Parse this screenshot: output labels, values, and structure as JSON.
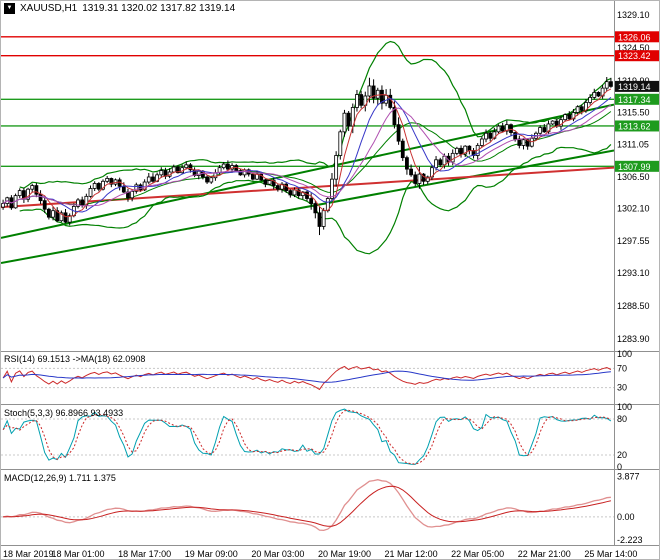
{
  "title": {
    "symbol": "XAUUSD,H1",
    "ohlc": "1319.31 1320.02 1317.82 1319.14"
  },
  "price_axis": {
    "ticks": [
      {
        "t": "1329.10",
        "v": 1329.1
      },
      {
        "t": "1324.50",
        "v": 1324.5
      },
      {
        "t": "1319.90",
        "v": 1319.9
      },
      {
        "t": "1315.50",
        "v": 1315.5
      },
      {
        "t": "1311.05",
        "v": 1311.05
      },
      {
        "t": "1306.50",
        "v": 1306.5
      },
      {
        "t": "1302.10",
        "v": 1302.1
      },
      {
        "t": "1297.55",
        "v": 1297.55
      },
      {
        "t": "1293.10",
        "v": 1293.1
      },
      {
        "t": "1288.50",
        "v": 1288.5
      },
      {
        "t": "1283.90",
        "v": 1283.9
      }
    ],
    "badges": [
      {
        "t": "1326.06",
        "v": 1326.06,
        "bg": "#e00000"
      },
      {
        "t": "1323.42",
        "v": 1323.42,
        "bg": "#e00000"
      },
      {
        "t": "1319.14",
        "v": 1319.14,
        "bg": "#111111"
      },
      {
        "t": "1317.34",
        "v": 1317.34,
        "bg": "#1e9b1e"
      },
      {
        "t": "1313.62",
        "v": 1313.62,
        "bg": "#1e9b1e"
      },
      {
        "t": "1307.99",
        "v": 1307.99,
        "bg": "#1e9b1e"
      }
    ]
  },
  "time_axis": {
    "labels": [
      {
        "t": "18 Mar 2019",
        "i": 2
      },
      {
        "t": "18 Mar 01:00",
        "i": 18
      },
      {
        "t": "18 Mar 17:00",
        "i": 34
      },
      {
        "t": "19 Mar 09:00",
        "i": 50
      },
      {
        "t": "20 Mar 03:00",
        "i": 66
      },
      {
        "t": "20 Mar 19:00",
        "i": 82
      },
      {
        "t": "21 Mar 12:00",
        "i": 98
      },
      {
        "t": "22 Mar 05:00",
        "i": 114
      },
      {
        "t": "22 Mar 21:00",
        "i": 130
      },
      {
        "t": "25 Mar 14:00",
        "i": 146
      }
    ]
  },
  "panels": {
    "rsi": {
      "label": "RSI(14) 69.1513 ->MA(18) 62.0908",
      "axis": [
        {
          "t": "100",
          "v": 100
        },
        {
          "t": "70",
          "v": 70
        },
        {
          "t": "30",
          "v": 30
        }
      ],
      "levels": [
        70,
        30
      ]
    },
    "stoch": {
      "label": "Stoch(5,3,3) 96.8966 93.4933",
      "axis": [
        {
          "t": "100",
          "v": 100
        },
        {
          "t": "80",
          "v": 80
        },
        {
          "t": "20",
          "v": 20
        },
        {
          "t": "0",
          "v": 0
        }
      ],
      "levels": [
        80,
        20
      ]
    },
    "macd": {
      "label": "MACD(12,26,9) 1.711 1.375",
      "axis": [
        {
          "t": "3.877",
          "v": 3.877
        },
        {
          "t": "0.00",
          "v": 0
        },
        {
          "t": "-2.223",
          "v": -2.223
        }
      ],
      "levels": [
        0
      ]
    }
  },
  "chart_data": {
    "type": "candlestick",
    "symbol": "XAUUSD",
    "timeframe": "H1",
    "ohlc_last": {
      "open": 1319.31,
      "high": 1320.02,
      "low": 1317.82,
      "close": 1319.14
    },
    "ylim": [
      1283.9,
      1329.1
    ],
    "closes": [
      1302.8,
      1303.6,
      1302.2,
      1303.9,
      1304.6,
      1303.4,
      1304.8,
      1305.3,
      1304.1,
      1303.2,
      1302.0,
      1300.9,
      1301.8,
      1300.4,
      1301.5,
      1300.2,
      1301.1,
      1302.4,
      1303.3,
      1302.6,
      1303.8,
      1304.9,
      1305.6,
      1304.8,
      1305.9,
      1306.3,
      1305.5,
      1306.1,
      1305.2,
      1304.4,
      1303.6,
      1304.5,
      1305.4,
      1304.7,
      1305.8,
      1306.5,
      1305.9,
      1306.8,
      1307.4,
      1306.6,
      1307.2,
      1307.9,
      1307.1,
      1307.8,
      1308.2,
      1307.5,
      1306.7,
      1307.3,
      1306.5,
      1305.8,
      1306.4,
      1307.1,
      1307.8,
      1308.3,
      1307.6,
      1308.1,
      1307.4,
      1306.8,
      1307.5,
      1306.9,
      1306.2,
      1306.9,
      1306.1,
      1305.5,
      1306.0,
      1305.3,
      1304.8,
      1305.5,
      1304.6,
      1304.0,
      1304.7,
      1303.9,
      1304.4,
      1303.5,
      1302.8,
      1301.5,
      1299.6,
      1301.8,
      1303.5,
      1306.2,
      1309.5,
      1312.8,
      1315.4,
      1313.6,
      1316.2,
      1318.0,
      1316.5,
      1317.8,
      1319.2,
      1317.5,
      1318.6,
      1316.8,
      1317.9,
      1316.2,
      1313.8,
      1311.5,
      1309.2,
      1307.6,
      1306.8,
      1305.6,
      1306.9,
      1305.9,
      1306.5,
      1307.8,
      1308.9,
      1308.2,
      1309.4,
      1308.6,
      1309.8,
      1310.5,
      1309.7,
      1310.8,
      1310.2,
      1309.5,
      1310.9,
      1311.8,
      1312.6,
      1311.9,
      1312.8,
      1313.6,
      1312.9,
      1313.8,
      1312.7,
      1311.8,
      1310.9,
      1311.7,
      1310.8,
      1311.9,
      1312.6,
      1313.4,
      1312.8,
      1313.9,
      1314.3,
      1313.6,
      1314.5,
      1315.2,
      1314.6,
      1315.5,
      1316.3,
      1315.8,
      1316.9,
      1317.6,
      1318.3,
      1317.8,
      1318.9,
      1319.8,
      1319.14
    ],
    "wick_overrides": [
      {
        "i": 76,
        "low": 1298.4
      },
      {
        "i": 88,
        "high": 1320.35
      },
      {
        "i": 145,
        "high": 1320.45
      }
    ],
    "hlines": [
      {
        "price": 1326.06,
        "color": "#e00000"
      },
      {
        "price": 1323.42,
        "color": "#e00000"
      },
      {
        "price": 1317.34,
        "color": "#1e9b1e"
      },
      {
        "price": 1313.62,
        "color": "#1e9b1e"
      },
      {
        "price": 1307.99,
        "color": "#1e9b1e"
      }
    ],
    "trendlines": [
      {
        "p_left": 1294.5,
        "p_right": 1310.2,
        "color": "#008000",
        "width": 2
      },
      {
        "p_left": 1298.0,
        "p_right": 1316.6,
        "color": "#008000",
        "width": 2
      },
      {
        "p_left": 1302.3,
        "p_right": 1307.8,
        "color": "#d03030",
        "width": 2
      }
    ],
    "bollinger": {
      "period": 20,
      "deviation": 2,
      "color": "#008000"
    },
    "mas": [
      {
        "period": 5,
        "color": "#c83232"
      },
      {
        "period": 10,
        "color": "#3838c8"
      },
      {
        "period": 15,
        "color": "#b050b0"
      }
    ],
    "indicators": {
      "rsi": {
        "period": 14,
        "value": 69.1513,
        "ma_period": 18,
        "ma_value": 62.0908
      },
      "stoch": {
        "k": 5,
        "d": 3,
        "slowing": 3,
        "k_value": 96.8966,
        "d_value": 93.4933
      },
      "macd": {
        "fast": 12,
        "slow": 26,
        "signal": 9,
        "value": 1.711,
        "signal_value": 1.375
      }
    }
  }
}
